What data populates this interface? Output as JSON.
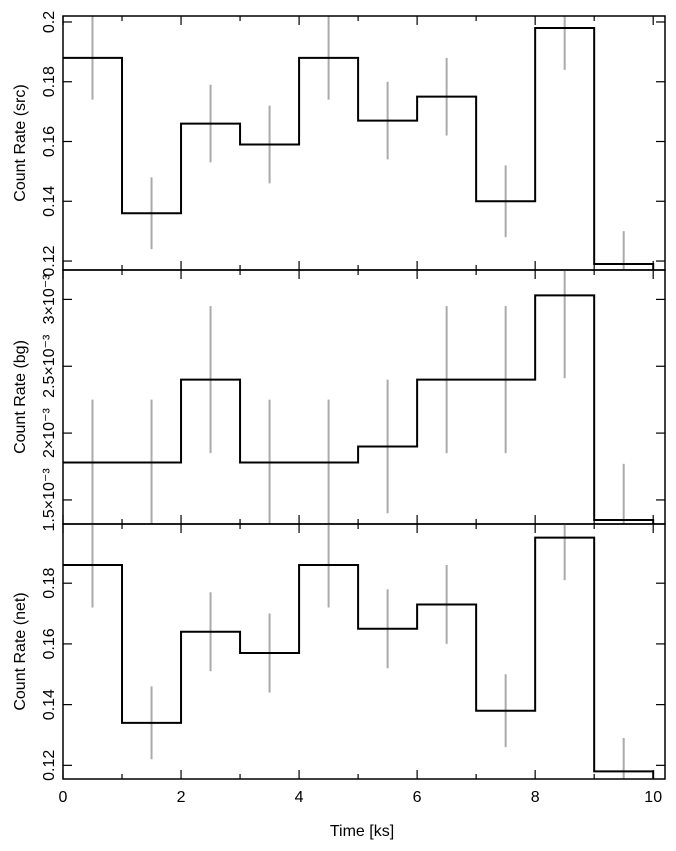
{
  "chart_data": [
    {
      "type": "line",
      "step": true,
      "panel": "src",
      "ylabel": "Count Rate (src)",
      "xlim": [
        0,
        10.2
      ],
      "ylim": [
        0.117,
        0.202
      ],
      "x": [
        0.5,
        1.5,
        2.5,
        3.5,
        4.5,
        5.5,
        6.5,
        7.5,
        8.5,
        9.5
      ],
      "y": [
        0.188,
        0.136,
        0.166,
        0.159,
        0.188,
        0.167,
        0.175,
        0.14,
        0.198,
        0.119
      ],
      "yerr": [
        0.014,
        0.012,
        0.013,
        0.013,
        0.014,
        0.013,
        0.013,
        0.012,
        0.014,
        0.011
      ],
      "yticks": [
        0.12,
        0.14,
        0.16,
        0.18,
        0.2
      ],
      "ytick_labels": [
        "0.12",
        "0.14",
        "0.16",
        "0.18",
        "0.2"
      ]
    },
    {
      "type": "line",
      "step": true,
      "panel": "bg",
      "ylabel": "Count Rate (bg)",
      "xlim": [
        0,
        10.2
      ],
      "ylim": [
        0.00132,
        0.00322
      ],
      "x": [
        0.5,
        1.5,
        2.5,
        3.5,
        4.5,
        5.5,
        6.5,
        7.5,
        8.5,
        9.5
      ],
      "y": [
        0.00178,
        0.00178,
        0.0024,
        0.00178,
        0.00178,
        0.0019,
        0.0024,
        0.0024,
        0.00303,
        0.00135
      ],
      "yerr": [
        0.00047,
        0.00047,
        0.00055,
        0.00047,
        0.00047,
        0.0005,
        0.00055,
        0.00055,
        0.00062,
        0.00042
      ],
      "yticks": [
        0.0015,
        0.002,
        0.0025,
        0.003
      ],
      "ytick_labels": [
        "1.5×10⁻³",
        "2×10⁻³",
        "2.5×10⁻³",
        "3×10⁻³"
      ]
    },
    {
      "type": "line",
      "step": true,
      "panel": "net",
      "ylabel": "Count Rate (net)",
      "xlabel": "Time [ks]",
      "xlim": [
        0,
        10.2
      ],
      "ylim": [
        0.1155,
        0.1995
      ],
      "x": [
        0.5,
        1.5,
        2.5,
        3.5,
        4.5,
        5.5,
        6.5,
        7.5,
        8.5,
        9.5
      ],
      "y": [
        0.186,
        0.134,
        0.164,
        0.157,
        0.186,
        0.165,
        0.173,
        0.138,
        0.195,
        0.118
      ],
      "yerr": [
        0.014,
        0.012,
        0.013,
        0.013,
        0.014,
        0.013,
        0.013,
        0.012,
        0.014,
        0.011
      ],
      "yticks": [
        0.12,
        0.14,
        0.16,
        0.18
      ],
      "ytick_labels": [
        "0.12",
        "0.14",
        "0.16",
        "0.18"
      ],
      "xticks": [
        0,
        2,
        4,
        6,
        8,
        10
      ],
      "xtick_labels": [
        "0",
        "2",
        "4",
        "6",
        "8",
        "10"
      ]
    }
  ],
  "style": {
    "line_color": "#000000",
    "error_color": "#aaaaaa",
    "frame_color": "#000000"
  }
}
